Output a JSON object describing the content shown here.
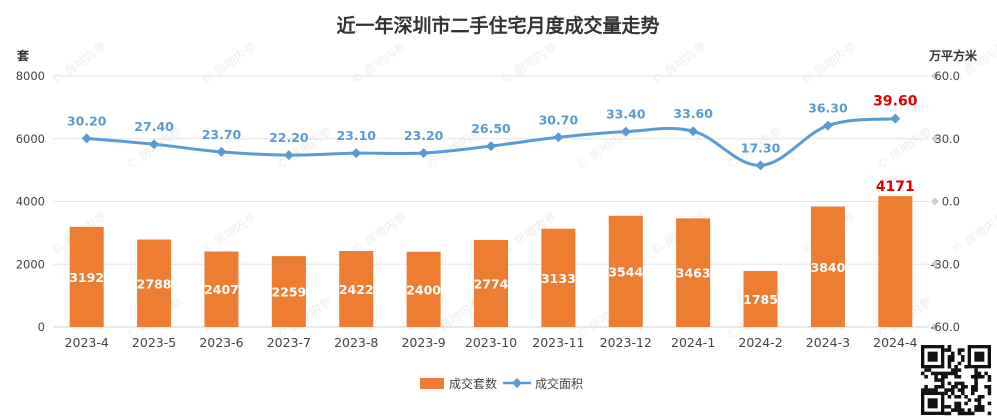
{
  "chart_data": {
    "type": "bar",
    "title": "近一年深圳市二手住宅月度成交量走势",
    "categories": [
      "2023-4",
      "2023-5",
      "2023-6",
      "2023-7",
      "2023-8",
      "2023-9",
      "2023-10",
      "2023-11",
      "2023-12",
      "2024-1",
      "2024-2",
      "2024-3",
      "2024-4"
    ],
    "left_axis": {
      "unit": "套",
      "range": [
        0,
        8000
      ],
      "ticks": [
        "0",
        "2000",
        "4000",
        "6000",
        "8000"
      ]
    },
    "right_axis": {
      "unit": "万平方米",
      "range": [
        -60,
        60
      ],
      "ticks": [
        "-60.0",
        "-30.0",
        "0.0",
        "30.0",
        "60.0"
      ]
    },
    "series": [
      {
        "name": "成交套数",
        "type": "bar",
        "axis": "left",
        "color": "#ed7d31",
        "values": [
          3192,
          2788,
          2407,
          2259,
          2422,
          2400,
          2774,
          3133,
          3544,
          3463,
          1785,
          3840,
          4171
        ],
        "labels": [
          "3192",
          "2788",
          "2407",
          "2259",
          "2422",
          "2400",
          "2774",
          "3133",
          "3544",
          "3463",
          "1785",
          "3840",
          "4171"
        ]
      },
      {
        "name": "成交面积",
        "type": "line",
        "axis": "right",
        "color": "#5b9bd5",
        "values": [
          30.2,
          27.4,
          23.7,
          22.2,
          23.1,
          23.2,
          26.5,
          30.7,
          33.4,
          33.6,
          17.3,
          36.3,
          39.6
        ],
        "labels": [
          "30.20",
          "27.40",
          "23.70",
          "22.20",
          "23.10",
          "23.20",
          "26.50",
          "30.70",
          "33.40",
          "33.60",
          "17.30",
          "36.30",
          "39.60"
        ]
      }
    ],
    "highlight_color": "#e00000",
    "legend": "bottom",
    "grid": true
  },
  "watermark": "房地内参"
}
